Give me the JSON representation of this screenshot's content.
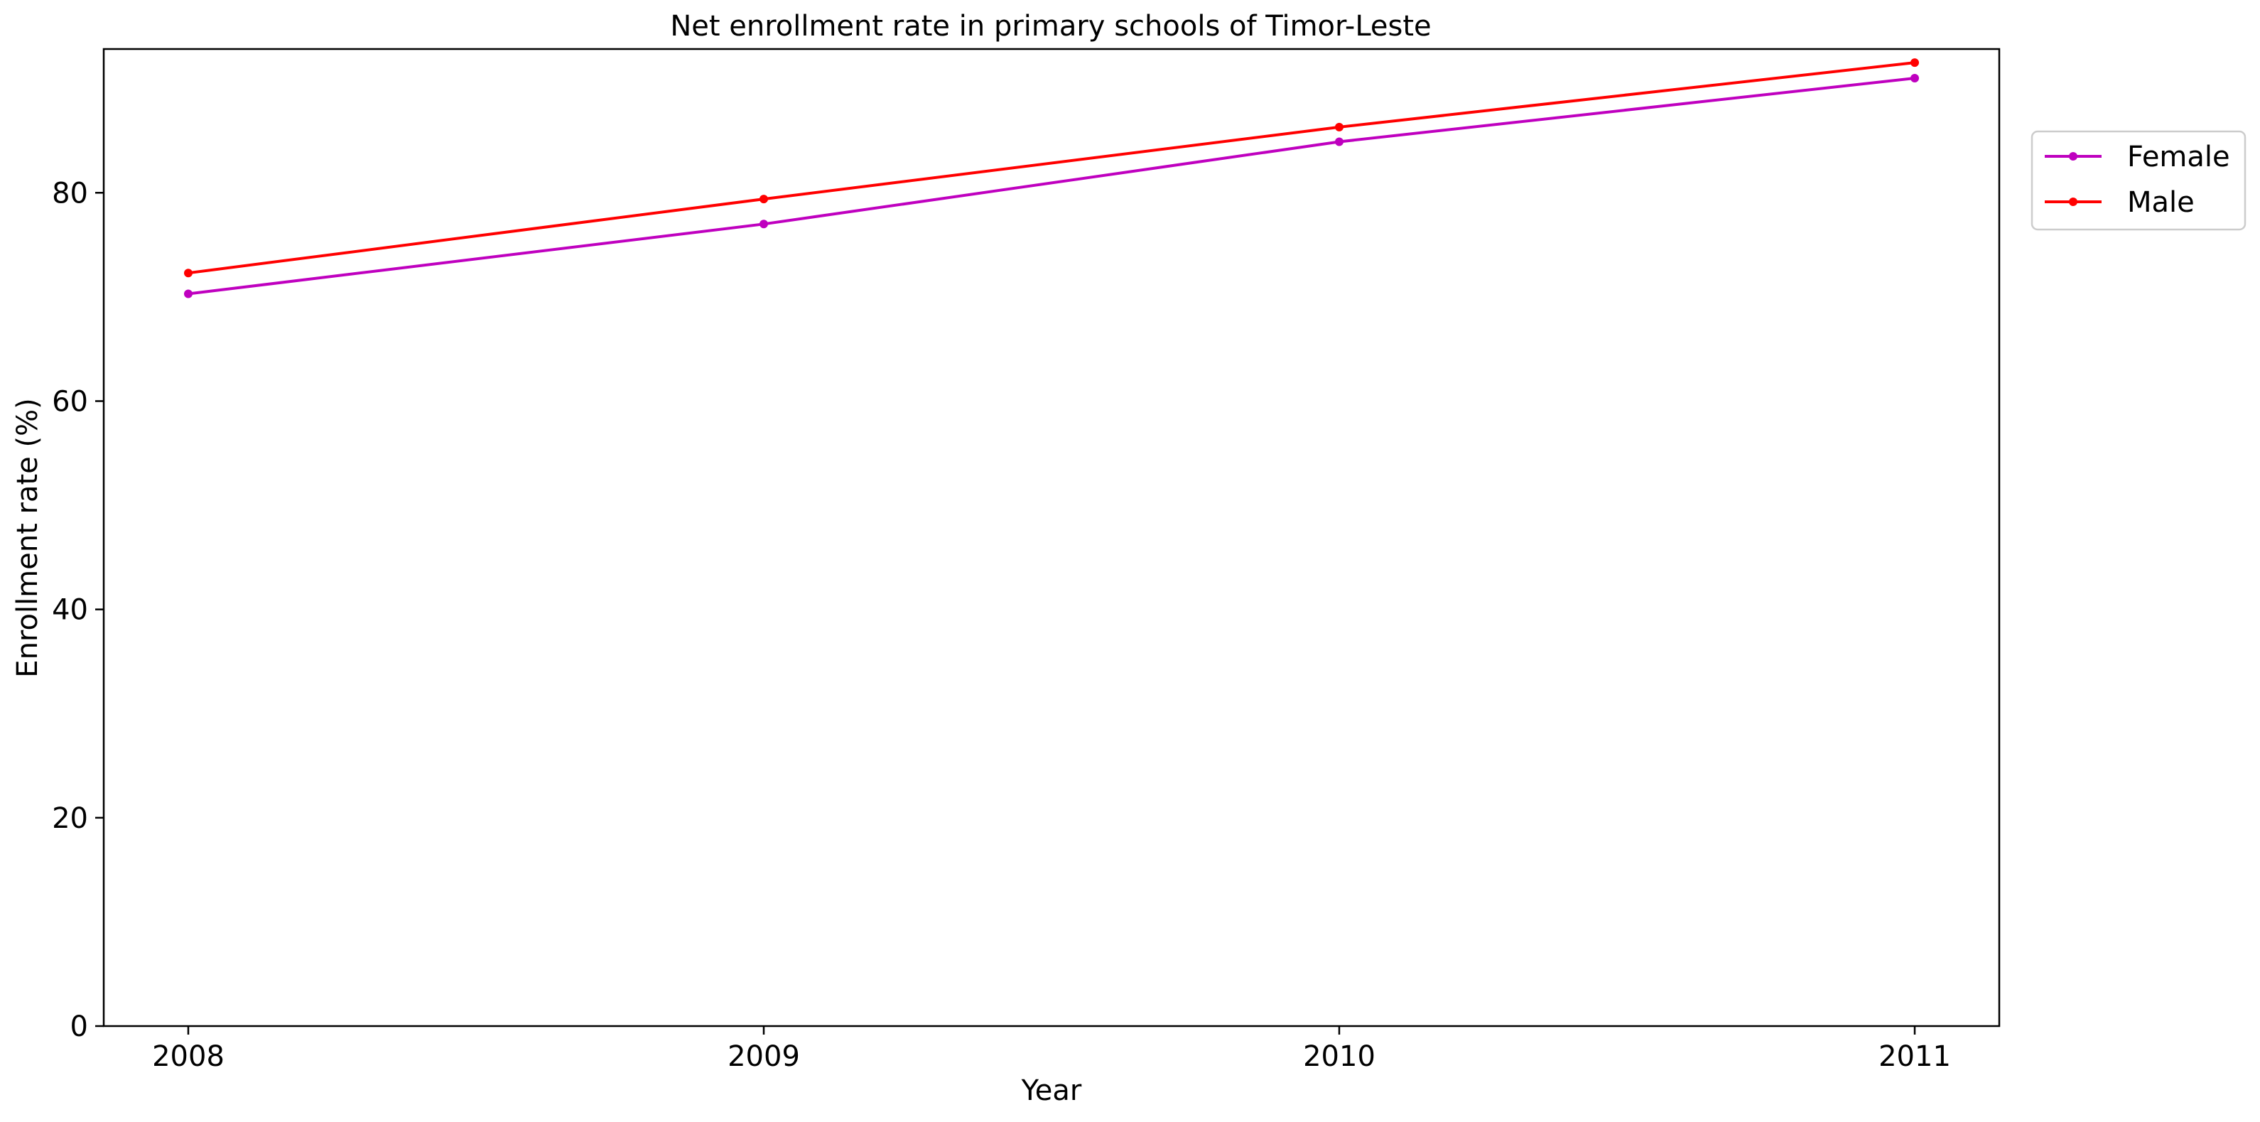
{
  "chart_data": {
    "type": "line",
    "title": "Net enrollment rate in primary schools of Timor-Leste",
    "xlabel": "Year",
    "ylabel": "Enrollment rate (%)",
    "x": [
      2008,
      2009,
      2010,
      2011
    ],
    "x_tick_labels": [
      "2008",
      "2009",
      "2010",
      "2011"
    ],
    "ylim": [
      0,
      93.8
    ],
    "y_ticks": [
      0,
      20,
      40,
      60,
      80
    ],
    "y_tick_labels": [
      "0",
      "20",
      "40",
      "60",
      "80"
    ],
    "grid": false,
    "legend_position": "outside-top-right",
    "series": [
      {
        "name": "Female",
        "color": "#bf00bf",
        "values": [
          70.3,
          77.0,
          84.9,
          91.0
        ]
      },
      {
        "name": "Male",
        "color": "#ff0000",
        "values": [
          72.3,
          79.4,
          86.3,
          92.5
        ]
      }
    ]
  }
}
